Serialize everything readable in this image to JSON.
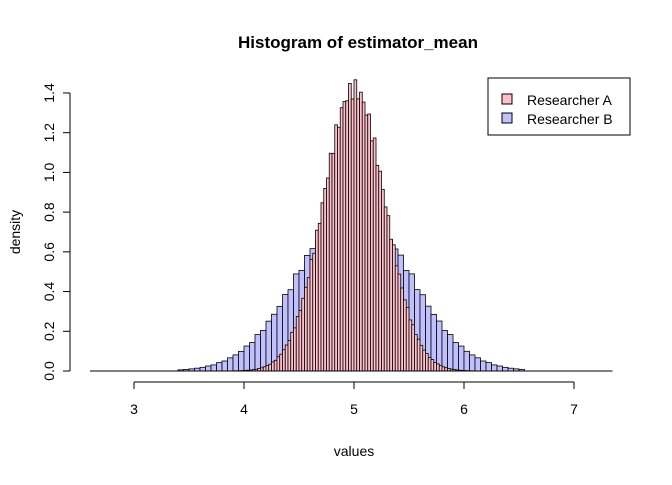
{
  "chart_data": {
    "type": "bar",
    "title": "Histogram of estimator_mean",
    "xlabel": "values",
    "ylabel": "density",
    "xlim": [
      2.6,
      7.35
    ],
    "ylim": [
      0,
      1.45
    ],
    "x_ticks": [
      "3",
      "4",
      "5",
      "6",
      "7"
    ],
    "y_ticks": [
      "0.0",
      "0.2",
      "0.4",
      "0.6",
      "0.8",
      "1.0",
      "1.2",
      "1.4"
    ],
    "legend_position": "top-right",
    "grid": false,
    "series": [
      {
        "name": "Researcher A",
        "color": "#ffc0cb",
        "distribution": "normal",
        "mean": 5.0,
        "sd": 0.28,
        "peak_density": 1.42,
        "x_range": [
          3.65,
          6.25
        ],
        "bin_width": 0.025
      },
      {
        "name": "Researcher B",
        "color": "#c0c0ff",
        "distribution": "normal",
        "mean": 5.0,
        "sd": 0.5,
        "peak_density": 0.82,
        "x_range": [
          3.4,
          6.55
        ],
        "bin_width": 0.05
      }
    ]
  }
}
